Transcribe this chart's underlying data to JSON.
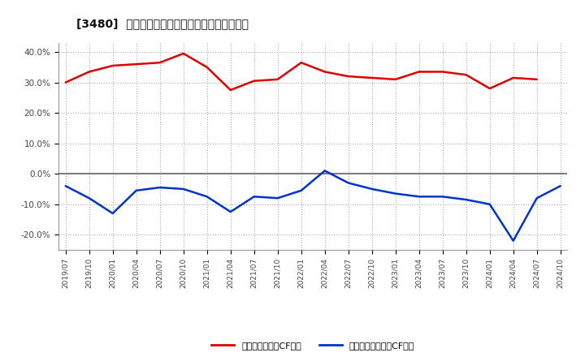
{
  "title": "[3480]  有利子負債キャッシュフロー比率の推移",
  "x_labels": [
    "2019/07",
    "2019/10",
    "2020/01",
    "2020/04",
    "2020/07",
    "2020/10",
    "2021/01",
    "2021/04",
    "2021/07",
    "2021/10",
    "2022/01",
    "2022/04",
    "2022/07",
    "2022/10",
    "2023/01",
    "2023/04",
    "2023/07",
    "2023/10",
    "2024/01",
    "2024/04",
    "2024/07",
    "2024/10"
  ],
  "red_values": [
    30.0,
    33.5,
    35.5,
    36.0,
    36.5,
    39.5,
    35.0,
    27.5,
    30.5,
    31.0,
    36.5,
    33.5,
    32.0,
    31.5,
    31.0,
    33.5,
    33.5,
    32.5,
    28.0,
    31.5,
    31.0,
    null
  ],
  "blue_values": [
    -4.0,
    -8.0,
    -13.0,
    -5.5,
    -4.5,
    -5.0,
    -7.5,
    -12.5,
    -7.5,
    -8.0,
    -5.5,
    1.0,
    -3.0,
    -5.0,
    -6.5,
    -7.5,
    -7.5,
    -8.5,
    -10.0,
    -22.0,
    -8.0,
    -4.0
  ],
  "red_color": "#dd0000",
  "blue_color": "#0033cc",
  "bg_color": "#ffffff",
  "plot_bg_color": "#ffffff",
  "grid_color": "#999999",
  "zero_line_color": "#666666",
  "legend_red": "有利子負債営業CF比率",
  "legend_blue": "有利子負債フリーCF比率",
  "ylim": [
    -25,
    43
  ],
  "yticks": [
    -20,
    -10,
    0,
    10,
    20,
    30,
    40
  ],
  "ytick_labels": [
    "-20.0%",
    "-10.0%",
    "0.0%",
    "10.0%",
    "20.0%",
    "30.0%",
    "40.0%"
  ]
}
